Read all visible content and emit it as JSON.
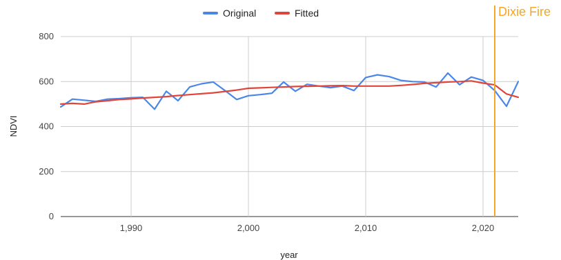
{
  "chart_data": {
    "type": "line",
    "title": "",
    "xlabel": "year",
    "ylabel": "NDVI",
    "xlim": [
      1984,
      2023
    ],
    "ylim": [
      0,
      800
    ],
    "x_ticks": [
      1990,
      2000,
      2010,
      2020
    ],
    "x_tick_labels": [
      "1,990",
      "2,000",
      "2,010",
      "2,020"
    ],
    "y_ticks": [
      0,
      200,
      400,
      600,
      800
    ],
    "y_tick_labels": [
      "0",
      "200",
      "400",
      "600",
      "800"
    ],
    "grid": true,
    "legend_position": "top",
    "x": [
      1984,
      1985,
      1986,
      1987,
      1988,
      1989,
      1990,
      1991,
      1992,
      1993,
      1994,
      1995,
      1996,
      1997,
      1998,
      1999,
      2000,
      2001,
      2002,
      2003,
      2004,
      2005,
      2006,
      2007,
      2008,
      2009,
      2010,
      2011,
      2012,
      2013,
      2014,
      2015,
      2016,
      2017,
      2018,
      2019,
      2020,
      2021,
      2022,
      2023
    ],
    "series": [
      {
        "name": "Original",
        "color": "#4a86e8",
        "values": [
          487,
          522,
          517,
          512,
          522,
          524,
          528,
          530,
          477,
          557,
          515,
          576,
          590,
          598,
          560,
          520,
          537,
          542,
          548,
          598,
          557,
          588,
          580,
          573,
          580,
          560,
          618,
          630,
          622,
          605,
          600,
          598,
          576,
          638,
          586,
          620,
          605,
          560,
          490,
          600
        ]
      },
      {
        "name": "Fitted",
        "color": "#e0443a",
        "values": [
          500,
          503,
          500,
          510,
          515,
          520,
          523,
          527,
          530,
          533,
          538,
          542,
          546,
          550,
          556,
          562,
          570,
          572,
          574,
          576,
          578,
          579,
          580,
          581,
          582,
          580,
          580,
          580,
          580,
          583,
          587,
          592,
          595,
          598,
          600,
          603,
          593,
          585,
          545,
          530
        ]
      }
    ],
    "annotations": [
      {
        "label": "Dixie Fire",
        "x": 2021,
        "color": "#f5a623"
      }
    ]
  }
}
